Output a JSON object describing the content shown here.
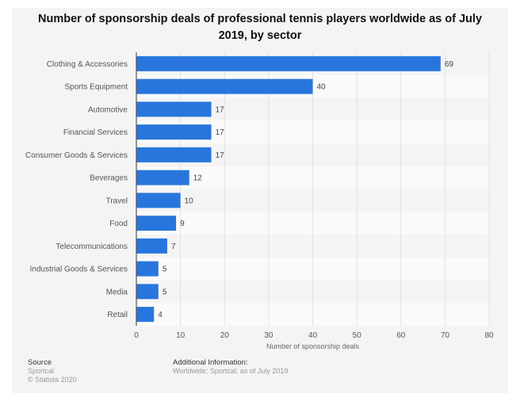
{
  "chart_data": {
    "type": "bar",
    "orientation": "horizontal",
    "title": "Number of sponsorship deals of professional tennis players worldwide as of July 2019, by sector",
    "title_lines": [
      "Number of sponsorship deals of professional tennis players worldwide as of July",
      "2019, by sector"
    ],
    "categories": [
      "Clothing & Accessories",
      "Sports Equipment",
      "Automotive",
      "Financial Services",
      "Consumer Goods & Services",
      "Beverages",
      "Travel",
      "Food",
      "Telecommunications",
      "Industrial Goods & Services",
      "Media",
      "Retail"
    ],
    "values": [
      69,
      40,
      17,
      17,
      17,
      12,
      10,
      9,
      7,
      5,
      5,
      4
    ],
    "xlabel": "Number of sponsorship deals",
    "ylabel": "",
    "xlim": [
      0,
      80
    ],
    "xticks": [
      0,
      10,
      20,
      30,
      40,
      50,
      60,
      70,
      80
    ],
    "grid": true,
    "bar_color": "#2876dd"
  },
  "footer": {
    "source_heading": "Source",
    "source_lines": [
      "Sportcal",
      "© Statista 2020"
    ],
    "additional_heading": "Additional Information:",
    "additional_text": "Worldwide; Sportcal; as of July 2019"
  }
}
